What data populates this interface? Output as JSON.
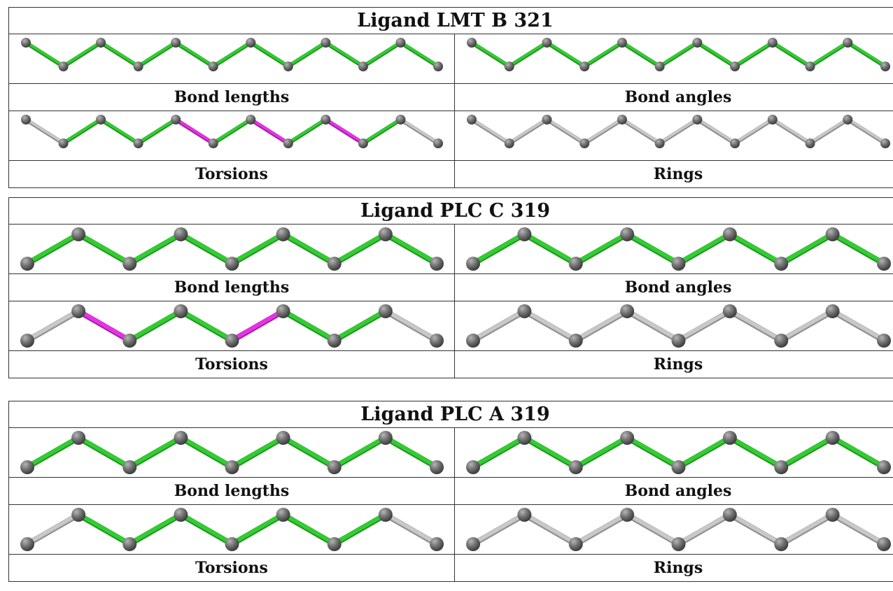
{
  "ligands": [
    {
      "title": "Ligand LMT B 321",
      "atom_count": 12,
      "panels": [
        {
          "label": "Bond lengths",
          "bond_colors": [
            "green",
            "green",
            "green",
            "green",
            "green",
            "green",
            "green",
            "green",
            "green",
            "green",
            "green"
          ]
        },
        {
          "label": "Bond angles",
          "bond_colors": [
            "green",
            "green",
            "green",
            "green",
            "green",
            "green",
            "green",
            "green",
            "green",
            "green",
            "green"
          ]
        },
        {
          "label": "Torsions",
          "bond_colors": [
            "grey",
            "green",
            "green",
            "green",
            "magenta",
            "green",
            "magenta",
            "green",
            "magenta",
            "green",
            "grey"
          ]
        },
        {
          "label": "Rings",
          "bond_colors": [
            "grey",
            "grey",
            "grey",
            "grey",
            "grey",
            "grey",
            "grey",
            "grey",
            "grey",
            "grey",
            "grey"
          ]
        }
      ]
    },
    {
      "title": "Ligand PLC C 319",
      "atom_count": 9,
      "panels": [
        {
          "label": "Bond lengths",
          "bond_colors": [
            "green",
            "green",
            "green",
            "green",
            "green",
            "green",
            "green",
            "green"
          ]
        },
        {
          "label": "Bond angles",
          "bond_colors": [
            "green",
            "green",
            "green",
            "green",
            "green",
            "green",
            "green",
            "green"
          ]
        },
        {
          "label": "Torsions",
          "bond_colors": [
            "grey",
            "magenta",
            "green",
            "green",
            "magenta",
            "green",
            "green",
            "grey"
          ]
        },
        {
          "label": "Rings",
          "bond_colors": [
            "grey",
            "grey",
            "grey",
            "grey",
            "grey",
            "grey",
            "grey",
            "grey"
          ]
        }
      ]
    },
    {
      "title": "Ligand PLC A 319",
      "atom_count": 9,
      "panels": [
        {
          "label": "Bond lengths",
          "bond_colors": [
            "green",
            "green",
            "green",
            "green",
            "green",
            "green",
            "green",
            "green"
          ]
        },
        {
          "label": "Bond angles",
          "bond_colors": [
            "green",
            "green",
            "green",
            "green",
            "green",
            "green",
            "green",
            "green"
          ]
        },
        {
          "label": "Torsions",
          "bond_colors": [
            "grey",
            "green",
            "green",
            "green",
            "green",
            "green",
            "green",
            "grey"
          ]
        },
        {
          "label": "Rings",
          "bond_colors": [
            "grey",
            "grey",
            "grey",
            "grey",
            "grey",
            "grey",
            "grey",
            "grey"
          ]
        }
      ]
    }
  ],
  "palette": {
    "green": "#33cc33",
    "green_dark": "#1f9a1f",
    "magenta": "#e633e6",
    "magenta_dark": "#a81fa8",
    "grey": "#c8c8c8",
    "grey_dark": "#8f8f8f",
    "atom": "#6e6e6e",
    "atom_highlight": "#b5b5b5",
    "atom_dark": "#3d3d3d"
  }
}
